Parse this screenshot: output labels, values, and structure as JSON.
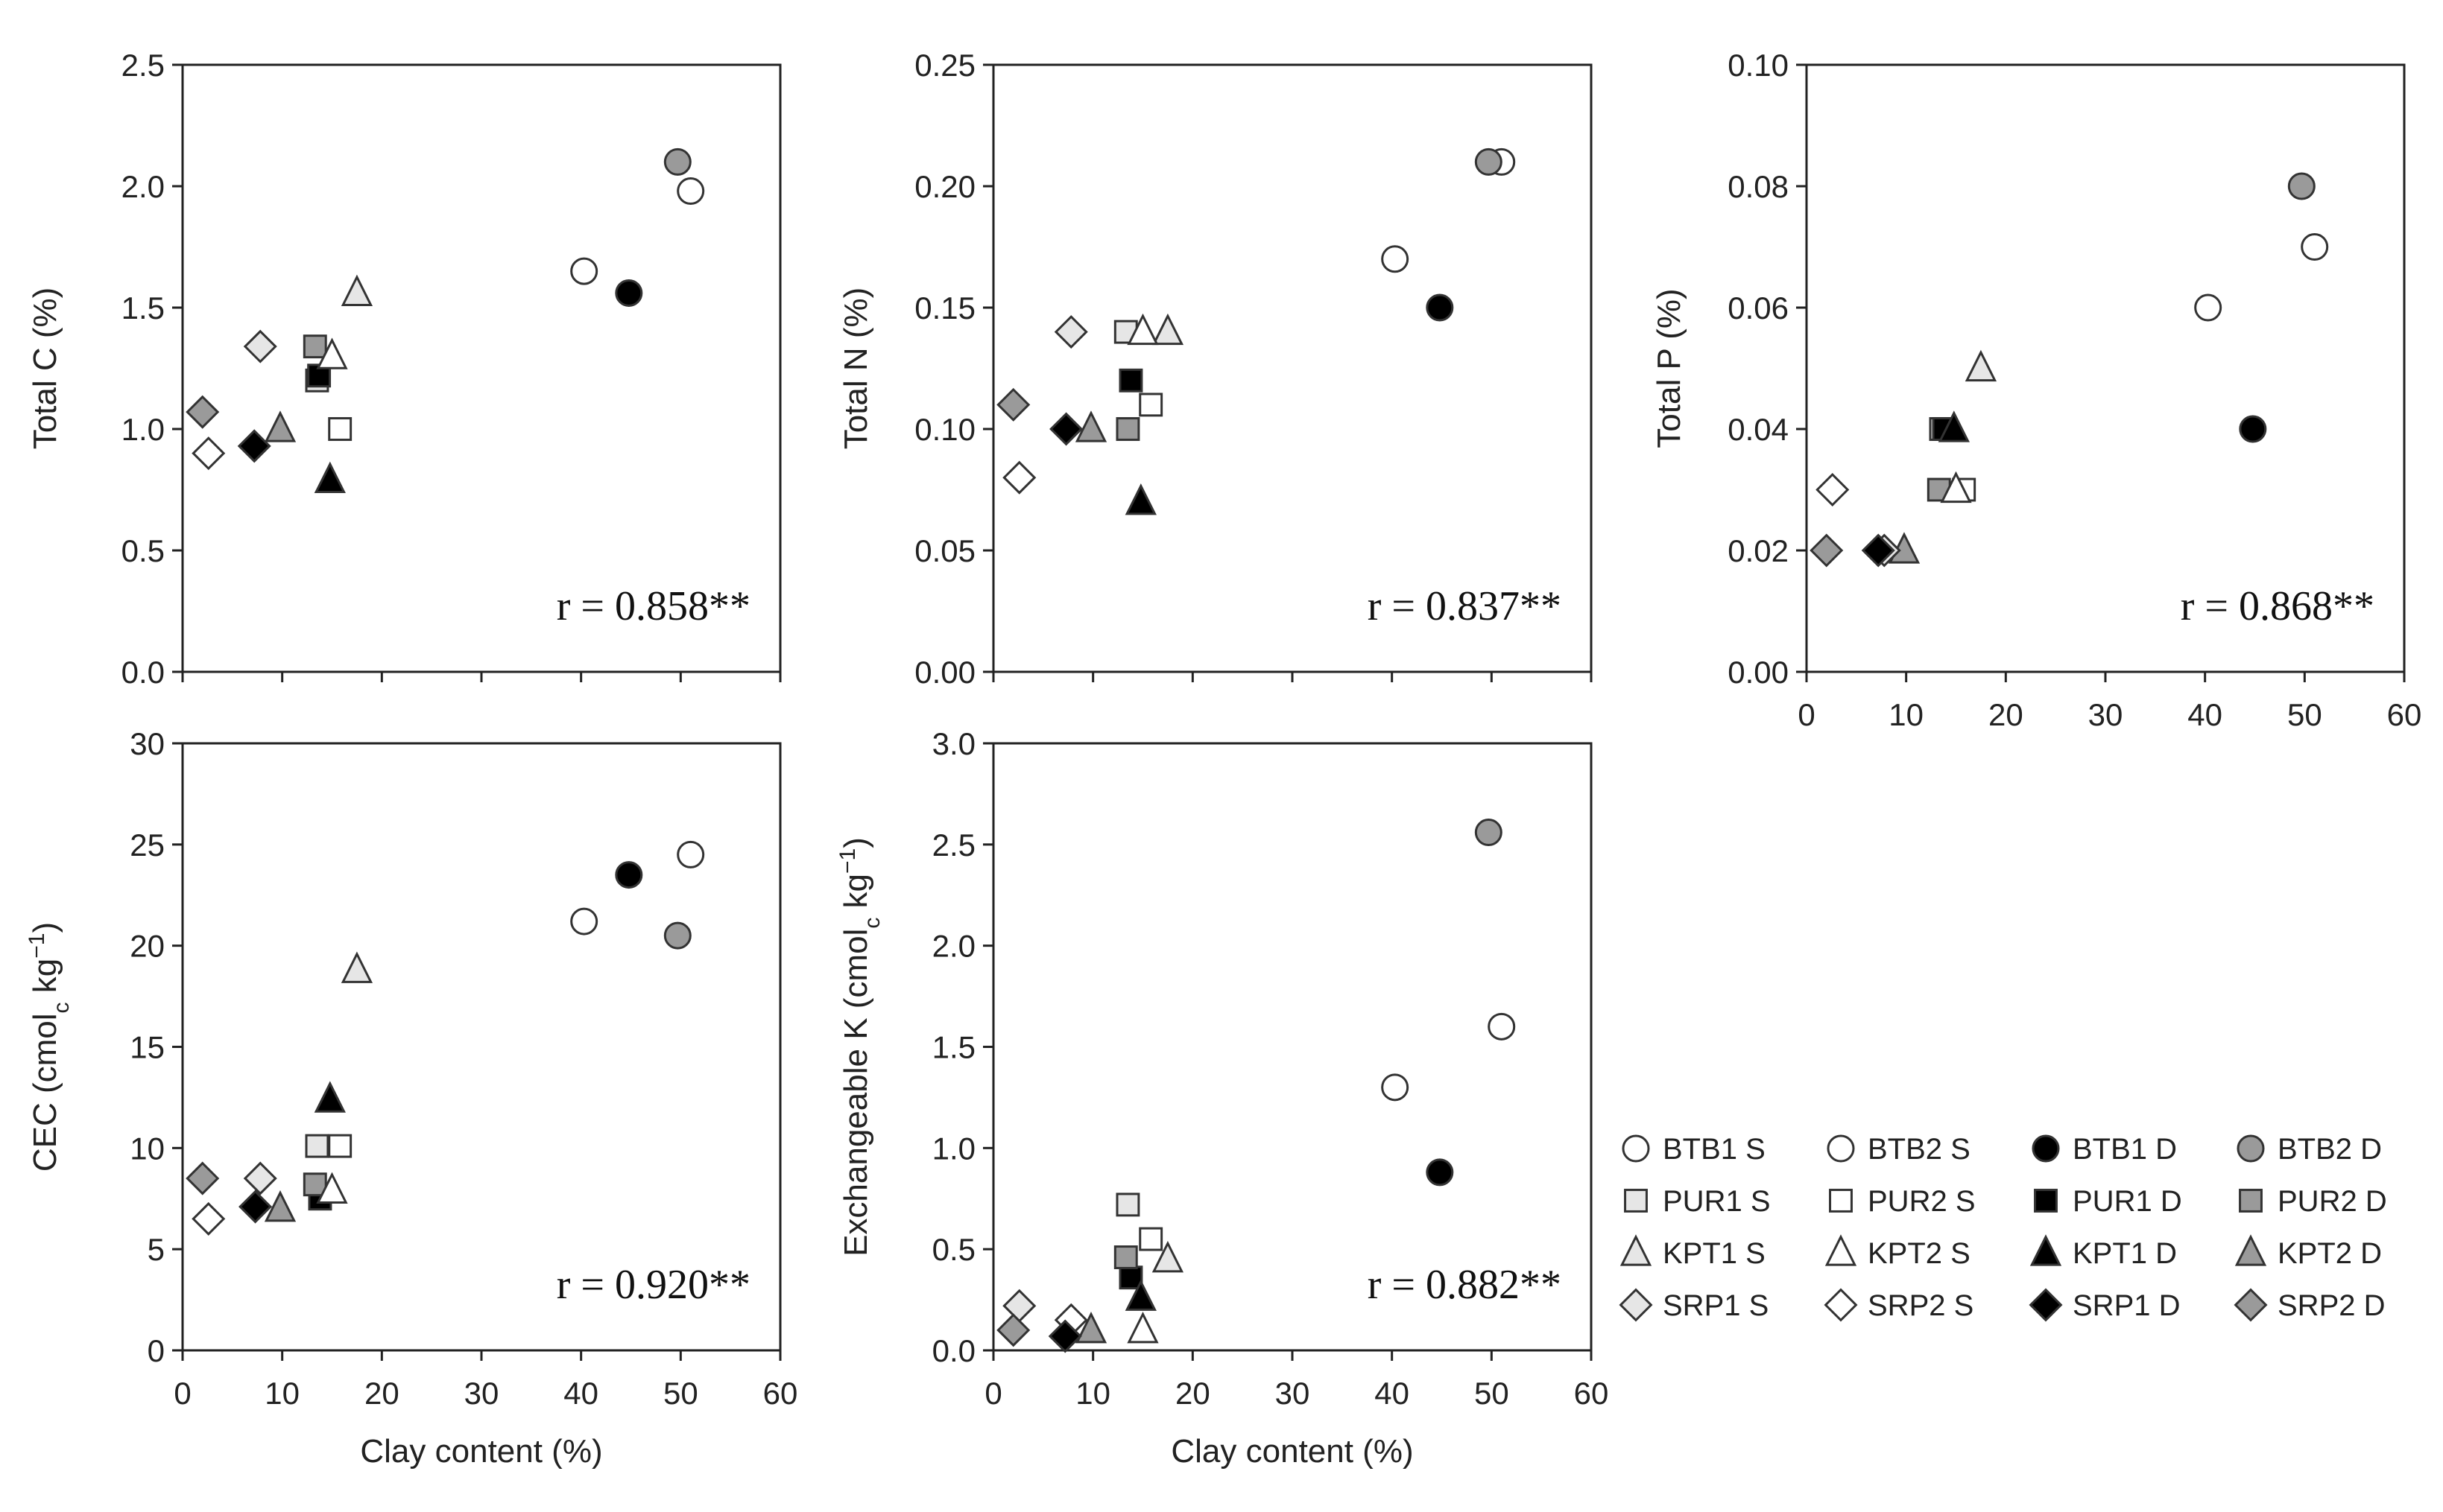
{
  "figure": {
    "xlabel": "Clay content (%)"
  },
  "legend": [
    {
      "label": "BTB1 S",
      "marker": "circle",
      "fill": "white"
    },
    {
      "label": "BTB2 S",
      "marker": "circle",
      "fill": "white"
    },
    {
      "label": "BTB1 D",
      "marker": "circle",
      "fill": "black"
    },
    {
      "label": "BTB2 D",
      "marker": "circle",
      "fill": "gray"
    },
    {
      "label": "PUR1 S",
      "marker": "square",
      "fill": "lightgray"
    },
    {
      "label": "PUR2 S",
      "marker": "square",
      "fill": "white"
    },
    {
      "label": "PUR1 D",
      "marker": "square",
      "fill": "black"
    },
    {
      "label": "PUR2 D",
      "marker": "square",
      "fill": "gray"
    },
    {
      "label": "KPT1 S",
      "marker": "triangle",
      "fill": "lightgray"
    },
    {
      "label": "KPT2 S",
      "marker": "triangle",
      "fill": "white"
    },
    {
      "label": "KPT1 D",
      "marker": "triangle",
      "fill": "black"
    },
    {
      "label": "KPT2 D",
      "marker": "triangle",
      "fill": "gray"
    },
    {
      "label": "SRP1 S",
      "marker": "diamond",
      "fill": "lightgray"
    },
    {
      "label": "SRP2 S",
      "marker": "diamond",
      "fill": "white"
    },
    {
      "label": "SRP1 D",
      "marker": "diamond",
      "fill": "black"
    },
    {
      "label": "SRP2 D",
      "marker": "diamond",
      "fill": "gray"
    }
  ],
  "colors": {
    "white": "#ffffff",
    "lightgray": "#e6e6e6",
    "gray": "#9a9a9a",
    "black": "#000000",
    "stroke": "#333333"
  },
  "chart_data": [
    {
      "id": "total-c",
      "type": "scatter",
      "ylabel": "Total C (%)",
      "xlabel": "",
      "xlim": [
        0,
        60
      ],
      "ylim": [
        0,
        2.5
      ],
      "yticks": [
        "0.0",
        "0.5",
        "1.0",
        "1.5",
        "2.0",
        "2.5"
      ],
      "xticks": [],
      "annotation": "r = 0.858**",
      "points": [
        {
          "series": "BTB1 S",
          "x": 40.3,
          "y": 1.65
        },
        {
          "series": "BTB2 S",
          "x": 51.0,
          "y": 1.98
        },
        {
          "series": "BTB1 D",
          "x": 44.8,
          "y": 1.56
        },
        {
          "series": "BTB2 D",
          "x": 49.7,
          "y": 2.1
        },
        {
          "series": "PUR1 S",
          "x": 13.5,
          "y": 1.2
        },
        {
          "series": "PUR2 S",
          "x": 15.8,
          "y": 1.0
        },
        {
          "series": "PUR1 D",
          "x": 13.7,
          "y": 1.22
        },
        {
          "series": "PUR2 D",
          "x": 13.3,
          "y": 1.34
        },
        {
          "series": "KPT1 S",
          "x": 17.5,
          "y": 1.56
        },
        {
          "series": "KPT2 S",
          "x": 15.0,
          "y": 1.3
        },
        {
          "series": "KPT1 D",
          "x": 14.8,
          "y": 0.79
        },
        {
          "series": "KPT2 D",
          "x": 9.8,
          "y": 1.0
        },
        {
          "series": "SRP1 S",
          "x": 7.8,
          "y": 1.34
        },
        {
          "series": "SRP2 S",
          "x": 2.6,
          "y": 0.9
        },
        {
          "series": "SRP1 D",
          "x": 7.2,
          "y": 0.93
        },
        {
          "series": "SRP2 D",
          "x": 2.0,
          "y": 1.07
        }
      ]
    },
    {
      "id": "total-n",
      "type": "scatter",
      "ylabel": "Total N (%)",
      "xlabel": "",
      "xlim": [
        0,
        60
      ],
      "ylim": [
        0,
        0.25
      ],
      "yticks": [
        "0.00",
        "0.05",
        "0.10",
        "0.15",
        "0.20",
        "0.25"
      ],
      "xticks": [],
      "annotation": "r = 0.837**",
      "points": [
        {
          "series": "BTB1 S",
          "x": 40.3,
          "y": 0.17
        },
        {
          "series": "BTB2 S",
          "x": 51.0,
          "y": 0.21
        },
        {
          "series": "BTB1 D",
          "x": 44.8,
          "y": 0.15
        },
        {
          "series": "BTB2 D",
          "x": 49.7,
          "y": 0.21
        },
        {
          "series": "PUR1 S",
          "x": 13.3,
          "y": 0.14
        },
        {
          "series": "PUR2 S",
          "x": 15.8,
          "y": 0.11
        },
        {
          "series": "PUR1 D",
          "x": 13.8,
          "y": 0.12
        },
        {
          "series": "PUR2 D",
          "x": 13.5,
          "y": 0.1
        },
        {
          "series": "KPT1 S",
          "x": 17.5,
          "y": 0.14
        },
        {
          "series": "KPT2 S",
          "x": 15.0,
          "y": 0.14
        },
        {
          "series": "KPT1 D",
          "x": 14.8,
          "y": 0.07
        },
        {
          "series": "KPT2 D",
          "x": 9.8,
          "y": 0.1
        },
        {
          "series": "SRP1 S",
          "x": 7.8,
          "y": 0.14
        },
        {
          "series": "SRP2 S",
          "x": 2.6,
          "y": 0.08
        },
        {
          "series": "SRP1 D",
          "x": 7.3,
          "y": 0.1
        },
        {
          "series": "SRP2 D",
          "x": 2.0,
          "y": 0.11
        }
      ]
    },
    {
      "id": "total-p",
      "type": "scatter",
      "ylabel": "Total P (%)",
      "xlabel": "",
      "xlim": [
        0,
        60
      ],
      "ylim": [
        0,
        0.1
      ],
      "yticks": [
        "0.00",
        "0.02",
        "0.04",
        "0.06",
        "0.08",
        "0.10"
      ],
      "xticks": [
        "0",
        "10",
        "20",
        "30",
        "40",
        "50",
        "60"
      ],
      "annotation": "r = 0.868**",
      "points": [
        {
          "series": "BTB1 S",
          "x": 40.3,
          "y": 0.06
        },
        {
          "series": "BTB2 S",
          "x": 51.0,
          "y": 0.07
        },
        {
          "series": "BTB1 D",
          "x": 44.8,
          "y": 0.04
        },
        {
          "series": "BTB2 D",
          "x": 49.7,
          "y": 0.08
        },
        {
          "series": "PUR1 S",
          "x": 13.5,
          "y": 0.04
        },
        {
          "series": "PUR2 S",
          "x": 15.8,
          "y": 0.03
        },
        {
          "series": "PUR1 D",
          "x": 13.8,
          "y": 0.04
        },
        {
          "series": "PUR2 D",
          "x": 13.3,
          "y": 0.03
        },
        {
          "series": "KPT1 S",
          "x": 17.5,
          "y": 0.05
        },
        {
          "series": "KPT2 S",
          "x": 15.0,
          "y": 0.03
        },
        {
          "series": "KPT1 D",
          "x": 14.8,
          "y": 0.04
        },
        {
          "series": "KPT2 D",
          "x": 9.8,
          "y": 0.02
        },
        {
          "series": "SRP1 S",
          "x": 7.8,
          "y": 0.02
        },
        {
          "series": "SRP2 S",
          "x": 2.6,
          "y": 0.03
        },
        {
          "series": "SRP1 D",
          "x": 7.2,
          "y": 0.02
        },
        {
          "series": "SRP2 D",
          "x": 2.0,
          "y": 0.02
        }
      ]
    },
    {
      "id": "cec",
      "type": "scatter",
      "ylabel": "CEC (cmol",
      "ylabel_sub": "c",
      "ylabel_rest": " kg",
      "ylabel_sup": "−1",
      "ylabel_end": ")",
      "xlabel": "Clay content (%)",
      "xlim": [
        0,
        60
      ],
      "ylim": [
        0,
        30
      ],
      "yticks": [
        "0",
        "5",
        "10",
        "15",
        "20",
        "25",
        "30"
      ],
      "xticks": [
        "0",
        "10",
        "20",
        "30",
        "40",
        "50",
        "60"
      ],
      "annotation": "r = 0.920**",
      "points": [
        {
          "series": "BTB1 S",
          "x": 40.3,
          "y": 21.2
        },
        {
          "series": "BTB2 S",
          "x": 51.0,
          "y": 24.5
        },
        {
          "series": "BTB1 D",
          "x": 44.8,
          "y": 23.5
        },
        {
          "series": "BTB2 D",
          "x": 49.7,
          "y": 20.5
        },
        {
          "series": "PUR1 S",
          "x": 13.5,
          "y": 10.1
        },
        {
          "series": "PUR2 S",
          "x": 15.8,
          "y": 10.1
        },
        {
          "series": "PUR1 D",
          "x": 13.8,
          "y": 7.5
        },
        {
          "series": "PUR2 D",
          "x": 13.3,
          "y": 8.2
        },
        {
          "series": "KPT1 S",
          "x": 17.5,
          "y": 18.8
        },
        {
          "series": "KPT2 S",
          "x": 15.0,
          "y": 7.9
        },
        {
          "series": "KPT1 D",
          "x": 14.8,
          "y": 12.4
        },
        {
          "series": "KPT2 D",
          "x": 9.8,
          "y": 7.0
        },
        {
          "series": "SRP1 S",
          "x": 7.8,
          "y": 8.5
        },
        {
          "series": "SRP2 S",
          "x": 2.6,
          "y": 6.5
        },
        {
          "series": "SRP1 D",
          "x": 7.3,
          "y": 7.1
        },
        {
          "series": "SRP2 D",
          "x": 2.0,
          "y": 8.5
        }
      ]
    },
    {
      "id": "exch-k",
      "type": "scatter",
      "ylabel": "Exchangeable K (cmol",
      "ylabel_sub": "c",
      "ylabel_rest": " kg",
      "ylabel_sup": "−1",
      "ylabel_end": ")",
      "xlabel": "Clay content (%)",
      "xlim": [
        0,
        60
      ],
      "ylim": [
        0,
        3.0
      ],
      "yticks": [
        "0.0",
        "0.5",
        "1.0",
        "1.5",
        "2.0",
        "2.5",
        "3.0"
      ],
      "xticks": [
        "0",
        "10",
        "20",
        "30",
        "40",
        "50",
        "60"
      ],
      "annotation": "r = 0.882**",
      "points": [
        {
          "series": "BTB1 S",
          "x": 40.3,
          "y": 1.3
        },
        {
          "series": "BTB2 S",
          "x": 51.0,
          "y": 1.6
        },
        {
          "series": "BTB1 D",
          "x": 44.8,
          "y": 0.88
        },
        {
          "series": "BTB2 D",
          "x": 49.7,
          "y": 2.56
        },
        {
          "series": "PUR1 S",
          "x": 13.5,
          "y": 0.72
        },
        {
          "series": "PUR2 S",
          "x": 15.8,
          "y": 0.55
        },
        {
          "series": "PUR1 D",
          "x": 13.8,
          "y": 0.36
        },
        {
          "series": "PUR2 D",
          "x": 13.3,
          "y": 0.46
        },
        {
          "series": "KPT1 S",
          "x": 17.5,
          "y": 0.45
        },
        {
          "series": "KPT2 S",
          "x": 15.0,
          "y": 0.1
        },
        {
          "series": "KPT1 D",
          "x": 14.8,
          "y": 0.26
        },
        {
          "series": "KPT2 D",
          "x": 9.8,
          "y": 0.1
        },
        {
          "series": "SRP1 S",
          "x": 2.6,
          "y": 0.22
        },
        {
          "series": "SRP2 S",
          "x": 7.8,
          "y": 0.15
        },
        {
          "series": "SRP1 D",
          "x": 7.2,
          "y": 0.07
        },
        {
          "series": "SRP2 D",
          "x": 2.0,
          "y": 0.1
        }
      ]
    }
  ]
}
